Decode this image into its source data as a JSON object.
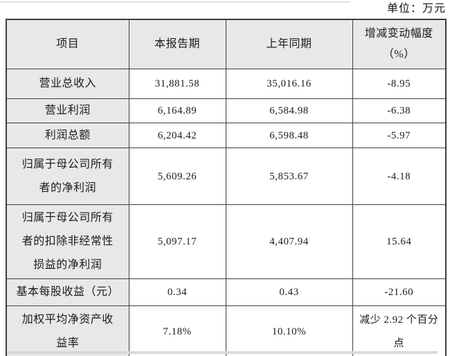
{
  "unit_label": "单位：万元",
  "colors": {
    "cell_gray": "#e8e8e8",
    "border_color": "#3d3d3d"
  },
  "table": {
    "headers": {
      "item": "项目",
      "current": "本报告期",
      "prior": "上年同期",
      "change": "增减变动幅度\n（%）"
    },
    "rows": [
      {
        "item": "营业总收入",
        "current": "31,881.58",
        "prior": "35,016.16",
        "change": "-8.95"
      },
      {
        "item": "营业利润",
        "current": "6,164.89",
        "prior": "6,584.98",
        "change": "-6.38"
      },
      {
        "item": "利润总额",
        "current": "6,204.42",
        "prior": "6,598.48",
        "change": "-5.97"
      },
      {
        "item": "归属于母公司所有\n者的净利润",
        "current": "5,609.26",
        "prior": "5,853.67",
        "change": "-4.18"
      },
      {
        "item": "归属于母公司所有\n者的扣除非经常性\n损益的净利润",
        "current": "5,097.17",
        "prior": "4,407.94",
        "change": "15.64"
      },
      {
        "item": "基本每股收益（元）",
        "current": "0.34",
        "prior": "0.43",
        "change": "-21.60"
      },
      {
        "item": "加权平均净资产收\n益率",
        "current": "7.18%",
        "prior": "10.10%",
        "change": "减少 2.92 个百分\n点"
      }
    ]
  }
}
